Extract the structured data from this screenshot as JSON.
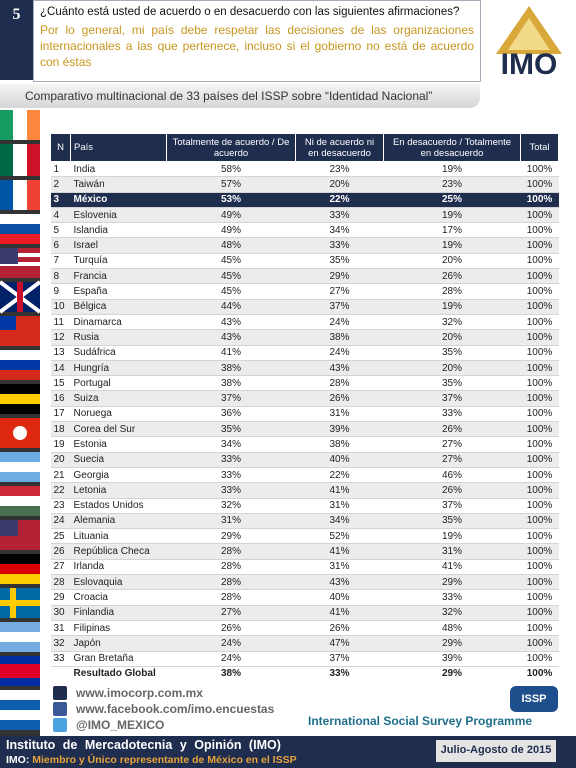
{
  "header": {
    "number": "5",
    "question": "¿Cuánto está usted de acuerdo o en desacuerdo con las siguientes afirmaciones?",
    "note": "Por lo general, mi país debe respetar las decisiones de las organizaciones internacionales a las que pertenece, incluso si el gobierno no está de acuerdo con éstas",
    "logo": "IMO",
    "subtitle": "Comparativo multinacional de 33 países del ISSP sobre “Identidad Nacional”"
  },
  "table": {
    "columns": [
      "N",
      "País",
      "Totalmente de acuerdo / De acuerdo",
      "Ni de acuerdo ni en desacuerdo",
      "En desacuerdo / Totalmente en desacuerdo",
      "Total"
    ],
    "rows": [
      [
        1,
        "India",
        "58%",
        "23%",
        "19%",
        "100%"
      ],
      [
        2,
        "Taiwán",
        "57%",
        "20%",
        "23%",
        "100%"
      ],
      [
        3,
        "México",
        "53%",
        "22%",
        "25%",
        "100%"
      ],
      [
        4,
        "Eslovenia",
        "49%",
        "33%",
        "19%",
        "100%"
      ],
      [
        5,
        "Islandia",
        "49%",
        "34%",
        "17%",
        "100%"
      ],
      [
        6,
        "Israel",
        "48%",
        "33%",
        "19%",
        "100%"
      ],
      [
        7,
        "Turquía",
        "45%",
        "35%",
        "20%",
        "100%"
      ],
      [
        8,
        "Francia",
        "45%",
        "29%",
        "26%",
        "100%"
      ],
      [
        9,
        "España",
        "45%",
        "27%",
        "28%",
        "100%"
      ],
      [
        10,
        "Bélgica",
        "44%",
        "37%",
        "19%",
        "100%"
      ],
      [
        11,
        "Dinamarca",
        "43%",
        "24%",
        "32%",
        "100%"
      ],
      [
        12,
        "Rusia",
        "43%",
        "38%",
        "20%",
        "100%"
      ],
      [
        13,
        "Sudáfrica",
        "41%",
        "24%",
        "35%",
        "100%"
      ],
      [
        14,
        "Hungría",
        "38%",
        "43%",
        "20%",
        "100%"
      ],
      [
        15,
        "Portugal",
        "38%",
        "28%",
        "35%",
        "100%"
      ],
      [
        16,
        "Suiza",
        "37%",
        "26%",
        "37%",
        "100%"
      ],
      [
        17,
        "Noruega",
        "36%",
        "31%",
        "33%",
        "100%"
      ],
      [
        18,
        "Corea del Sur",
        "35%",
        "39%",
        "26%",
        "100%"
      ],
      [
        19,
        "Estonia",
        "34%",
        "38%",
        "27%",
        "100%"
      ],
      [
        20,
        "Suecia",
        "33%",
        "40%",
        "27%",
        "100%"
      ],
      [
        21,
        "Georgia",
        "33%",
        "22%",
        "46%",
        "100%"
      ],
      [
        22,
        "Letonia",
        "33%",
        "41%",
        "26%",
        "100%"
      ],
      [
        23,
        "Estados Unidos",
        "32%",
        "31%",
        "37%",
        "100%"
      ],
      [
        24,
        "Alemania",
        "31%",
        "34%",
        "35%",
        "100%"
      ],
      [
        25,
        "Lituania",
        "29%",
        "52%",
        "19%",
        "100%"
      ],
      [
        26,
        "República Checa",
        "28%",
        "41%",
        "31%",
        "100%"
      ],
      [
        27,
        "Irlanda",
        "28%",
        "31%",
        "41%",
        "100%"
      ],
      [
        28,
        "Eslovaquia",
        "28%",
        "43%",
        "29%",
        "100%"
      ],
      [
        29,
        "Croacia",
        "28%",
        "40%",
        "33%",
        "100%"
      ],
      [
        30,
        "Finlandia",
        "27%",
        "41%",
        "32%",
        "100%"
      ],
      [
        31,
        "Filipinas",
        "26%",
        "26%",
        "48%",
        "100%"
      ],
      [
        32,
        "Japón",
        "24%",
        "47%",
        "29%",
        "100%"
      ],
      [
        33,
        "Gran Bretaña",
        "24%",
        "37%",
        "39%",
        "100%"
      ]
    ],
    "summary": [
      "Resultado Global",
      "38%",
      "33%",
      "29%",
      "100%"
    ]
  },
  "footer": {
    "links": [
      "www.imocorp.com.mx",
      "www.facebook.com/imo.encuestas",
      "@IMO_MEXICO"
    ],
    "issp_logo": "ISSP",
    "issp_name": "International Social Survey Programme",
    "institute": "Instituto de Mercadotecnia y Opinión (IMO)",
    "membership_label": "IMO:",
    "membership": "Miembro y Único representante de México en el ISSP",
    "date": "Julio-Agosto de 2015"
  }
}
